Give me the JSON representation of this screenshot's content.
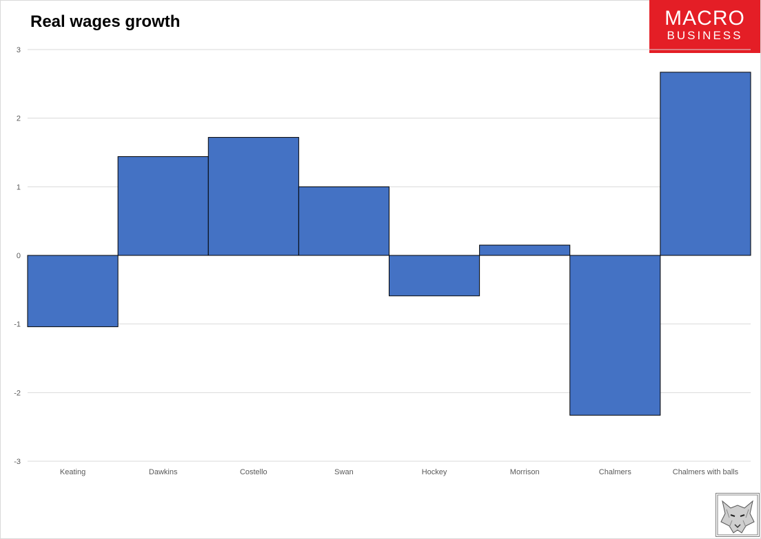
{
  "title": "Real wages growth",
  "logo": {
    "line1": "MACRO",
    "line2": "BUSINESS",
    "color": "#e41e26"
  },
  "colors": {
    "bar": "#4472c4",
    "bar_stroke": "#000000",
    "grid": "#d9d9d9"
  },
  "icons": {
    "watermark": "wolf-icon"
  },
  "chart_data": {
    "type": "bar",
    "title": "Real wages growth",
    "xlabel": "",
    "ylabel": "",
    "categories": [
      "Keating",
      "Dawkins",
      "Costello",
      "Swan",
      "Hockey",
      "Morrison",
      "Chalmers",
      "Chalmers with balls"
    ],
    "values": [
      -1.04,
      1.44,
      1.72,
      1.0,
      -0.59,
      0.15,
      -2.33,
      2.67
    ],
    "ylim": [
      -3,
      3
    ],
    "yticks": [
      3,
      2,
      1,
      0,
      -1,
      -2,
      -3
    ],
    "grid": true,
    "legend": "none"
  }
}
